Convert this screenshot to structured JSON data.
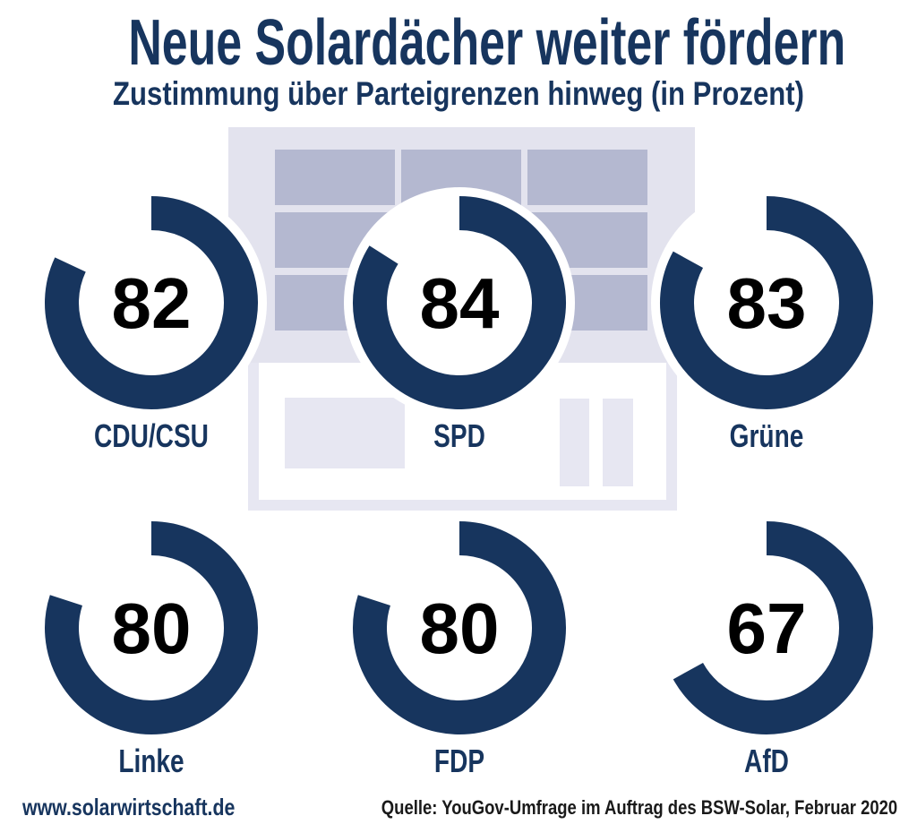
{
  "header": {
    "title": "Neue Solardächer weiter fördern",
    "subtitle": "Zustimmung über Parteigrenzen hinweg (in Prozent)"
  },
  "chart_data": {
    "type": "donut",
    "title": "Neue Solardächer weiter fördern",
    "subtitle": "Zustimmung über Parteigrenzen hinweg (in Prozent)",
    "unit": "percent",
    "categories": [
      "CDU/CSU",
      "SPD",
      "Grüne",
      "Linke",
      "FDP",
      "AfD"
    ],
    "values": [
      82,
      84,
      83,
      80,
      80,
      67
    ],
    "start_angle_deg": 0,
    "direction": "clockwise",
    "layout": "2 rows x 3 columns, value centered in ring, party label below",
    "ring_color": "#17355E",
    "value_color": "#000000"
  },
  "illustration": {
    "name": "house-with-rooftop-solar-panels",
    "solar_panel_count": 9,
    "window_count": 1,
    "door_panel_count": 2
  },
  "footer": {
    "website": "www.solarwirtschaft.de",
    "source": "Quelle: YouGov-Umfrage im Auftrag des BSW-Solar, Februar 2020"
  },
  "colors": {
    "navy": "#17355E",
    "roof": "#E3E3EE",
    "panel": "#B4B8D0",
    "outline": "#E7E7F2",
    "window": "#E7E7F2",
    "background": "#FFFFFF"
  }
}
